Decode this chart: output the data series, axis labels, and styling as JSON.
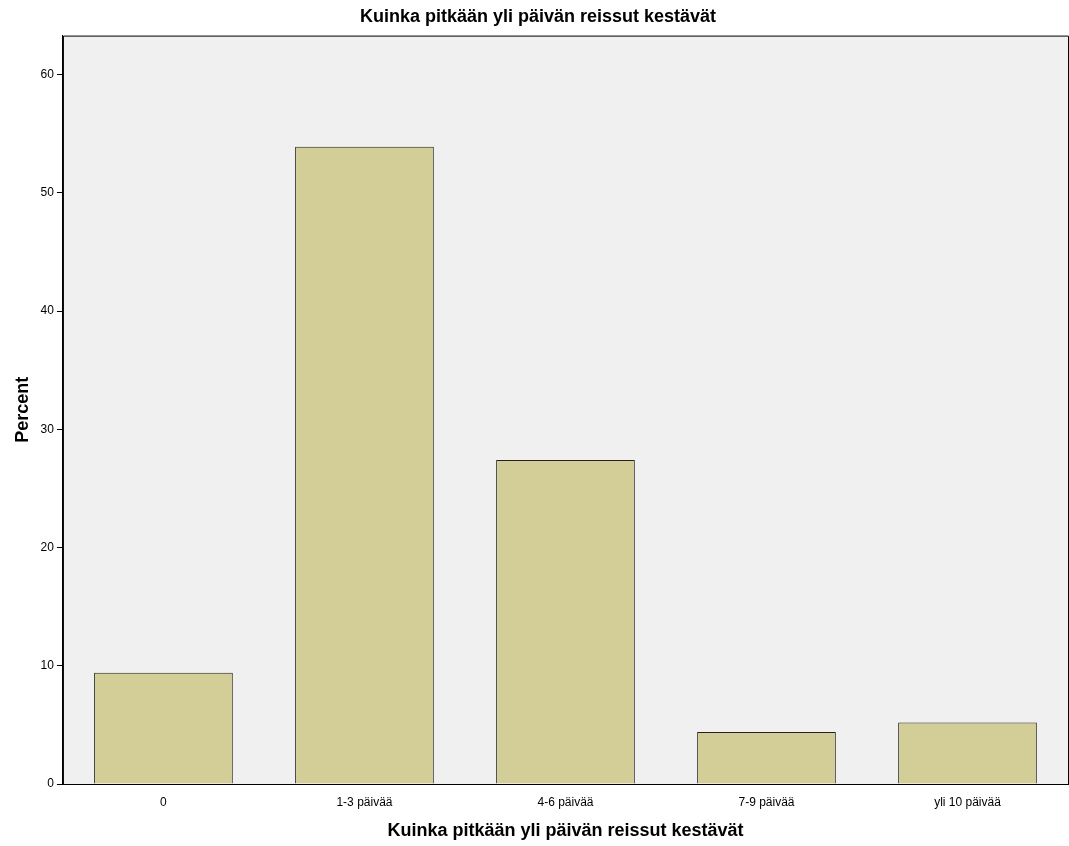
{
  "chart_data": {
    "type": "bar",
    "title": "Kuinka pitkään yli päivän reissut kestävät",
    "xlabel": "Kuinka pitkään yli päivän reissut kestävät",
    "ylabel": "Percent",
    "categories": [
      "0",
      "1-3 päivää",
      "4-6 päivää",
      "7-9 päivää",
      "yli 10 päivää"
    ],
    "values": [
      9.4,
      53.9,
      27.4,
      4.4,
      5.2
    ],
    "color": "#d3ce97",
    "ylim": [
      0,
      63.3
    ],
    "yticks": [
      0,
      10,
      20,
      30,
      40,
      50,
      60
    ],
    "grid": false,
    "legend": false
  }
}
